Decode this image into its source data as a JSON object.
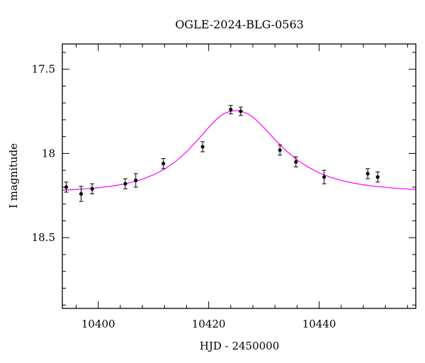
{
  "chart_data": {
    "type": "scatter",
    "title": "OGLE-2024-BLG-0563",
    "xlabel": "HJD - 2450000",
    "ylabel": "I magnitude",
    "xlim": [
      10393.5,
      10457.5
    ],
    "ylim": [
      18.92,
      17.35
    ],
    "y_inverted": true,
    "x_major_ticks": [
      10400,
      10420,
      10440
    ],
    "x_tick_labels": [
      "10400",
      "10420",
      "10440"
    ],
    "y_major_ticks": [
      17.5,
      18,
      18.5
    ],
    "y_tick_labels": [
      "17.5",
      "18",
      "18.5"
    ],
    "grid": false,
    "points": [
      {
        "x": 10394.2,
        "y": 18.2,
        "err": 0.03
      },
      {
        "x": 10396.9,
        "y": 18.24,
        "err": 0.045
      },
      {
        "x": 10398.9,
        "y": 18.21,
        "err": 0.03
      },
      {
        "x": 10404.9,
        "y": 18.18,
        "err": 0.03
      },
      {
        "x": 10406.8,
        "y": 18.16,
        "err": 0.04
      },
      {
        "x": 10411.8,
        "y": 18.06,
        "err": 0.03
      },
      {
        "x": 10418.9,
        "y": 17.96,
        "err": 0.03
      },
      {
        "x": 10424.0,
        "y": 17.74,
        "err": 0.025
      },
      {
        "x": 10425.8,
        "y": 17.75,
        "err": 0.025
      },
      {
        "x": 10432.9,
        "y": 17.98,
        "err": 0.03
      },
      {
        "x": 10435.8,
        "y": 18.05,
        "err": 0.03
      },
      {
        "x": 10440.9,
        "y": 18.14,
        "err": 0.04
      },
      {
        "x": 10448.8,
        "y": 18.12,
        "err": 0.03
      },
      {
        "x": 10450.6,
        "y": 18.14,
        "err": 0.03
      }
    ],
    "model": {
      "type": "line",
      "color": "#ff00ff",
      "x": [
        10393.5,
        10396,
        10398,
        10400,
        10402,
        10404,
        10406,
        10408,
        10410,
        10412,
        10414,
        10416,
        10418,
        10420,
        10421,
        10422,
        10423,
        10424,
        10425,
        10425.5,
        10426,
        10427,
        10428,
        10429,
        10430,
        10431,
        10432,
        10434,
        10436,
        10438,
        10440,
        10442,
        10444,
        10446,
        10448,
        10450,
        10452,
        10454,
        10456,
        10457.5
      ],
      "y": [
        18.218,
        18.214,
        18.209,
        18.204,
        18.196,
        18.186,
        18.172,
        18.153,
        18.127,
        18.093,
        18.048,
        17.99,
        17.92,
        17.845,
        17.81,
        17.781,
        17.76,
        17.749,
        17.746,
        17.747,
        17.75,
        17.763,
        17.784,
        17.813,
        17.847,
        17.883,
        17.918,
        17.983,
        18.038,
        18.081,
        18.115,
        18.141,
        18.16,
        18.175,
        18.186,
        18.195,
        18.201,
        18.207,
        18.211,
        18.214
      ]
    },
    "colors": {
      "points": "#000000",
      "model": "#ff00ff",
      "axes": "#000000"
    }
  }
}
